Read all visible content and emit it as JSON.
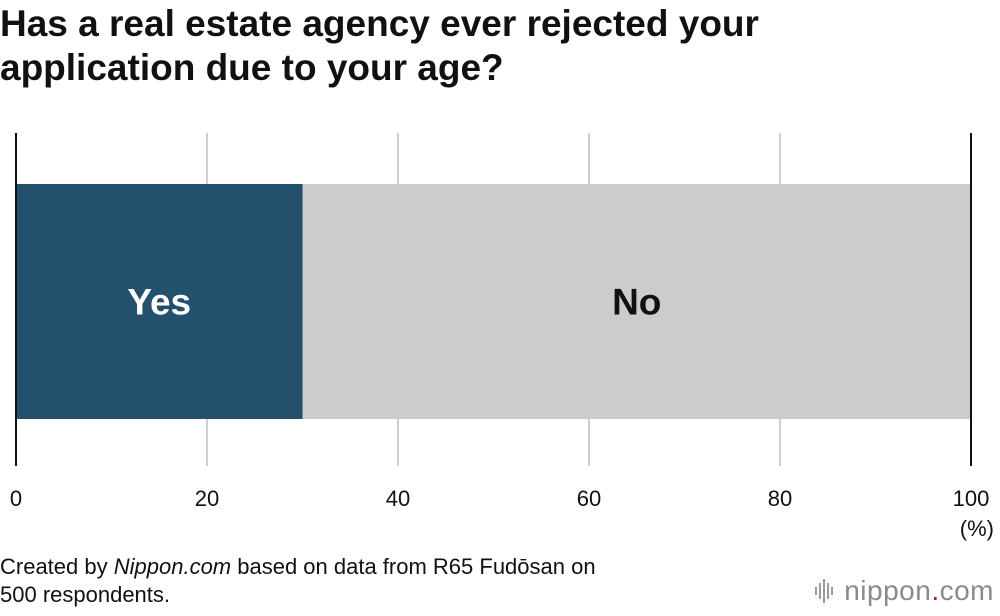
{
  "title_line1": "Has a real estate agency ever rejected your",
  "title_line2": "application due to your age?",
  "chart_data": {
    "type": "bar",
    "orientation": "horizontal-stacked",
    "categories": [
      ""
    ],
    "series": [
      {
        "name": "Yes",
        "values": [
          30
        ],
        "color": "#23506d",
        "label_color": "#ffffff"
      },
      {
        "name": "No",
        "values": [
          70
        ],
        "color": "#cccccc",
        "label_color": "#111111"
      }
    ],
    "xlim": [
      0,
      100
    ],
    "xticks": [
      "0",
      "20",
      "40",
      "60",
      "80",
      "100"
    ],
    "xunit": "(%)",
    "grid": true
  },
  "footer": {
    "prefix": "Created by ",
    "source": "Nippon.com",
    "suffix": " based on data from R65 Fudōsan on",
    "line2": "500 respondents."
  },
  "brand": {
    "name_a": "nippon",
    "dot": ".",
    "name_b": "com",
    "icon": "bars-logo-icon"
  }
}
